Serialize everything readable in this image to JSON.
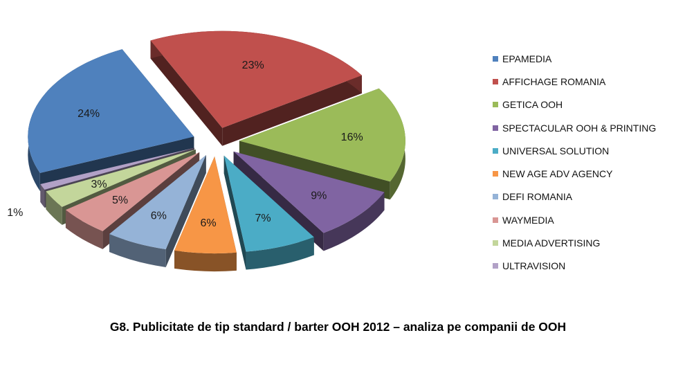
{
  "chart_data": {
    "type": "pie",
    "title": "G8. Publicitate de tip standard / barter OOH 2012 – analiza pe companii de OOH",
    "legend_position": "right",
    "slices": [
      {
        "label": "EPAMEDIA",
        "value": 24,
        "display": "24%",
        "color": "#4f81bd"
      },
      {
        "label": "AFFICHAGE ROMANIA",
        "value": 23,
        "display": "23%",
        "color": "#c0504d"
      },
      {
        "label": "GETICA OOH",
        "value": 16,
        "display": "16%",
        "color": "#9bbb59"
      },
      {
        "label": "SPECTACULAR OOH & PRINTING",
        "value": 9,
        "display": "9%",
        "color": "#8064a2"
      },
      {
        "label": "UNIVERSAL SOLUTION",
        "value": 7,
        "display": "7%",
        "color": "#4bacc6"
      },
      {
        "label": "NEW AGE ADV AGENCY",
        "value": 6,
        "display": "6%",
        "color": "#f79646"
      },
      {
        "label": "DEFI ROMANIA",
        "value": 6,
        "display": "6%",
        "color": "#95b3d7"
      },
      {
        "label": "WAYMEDIA",
        "value": 5,
        "display": "5%",
        "color": "#d99694"
      },
      {
        "label": "MEDIA ADVERTISING",
        "value": 3,
        "display": "3%",
        "color": "#c3d69b"
      },
      {
        "label": "ULTRAVISION",
        "value": 1,
        "display": "1%",
        "color": "#b2a1c7"
      }
    ]
  }
}
